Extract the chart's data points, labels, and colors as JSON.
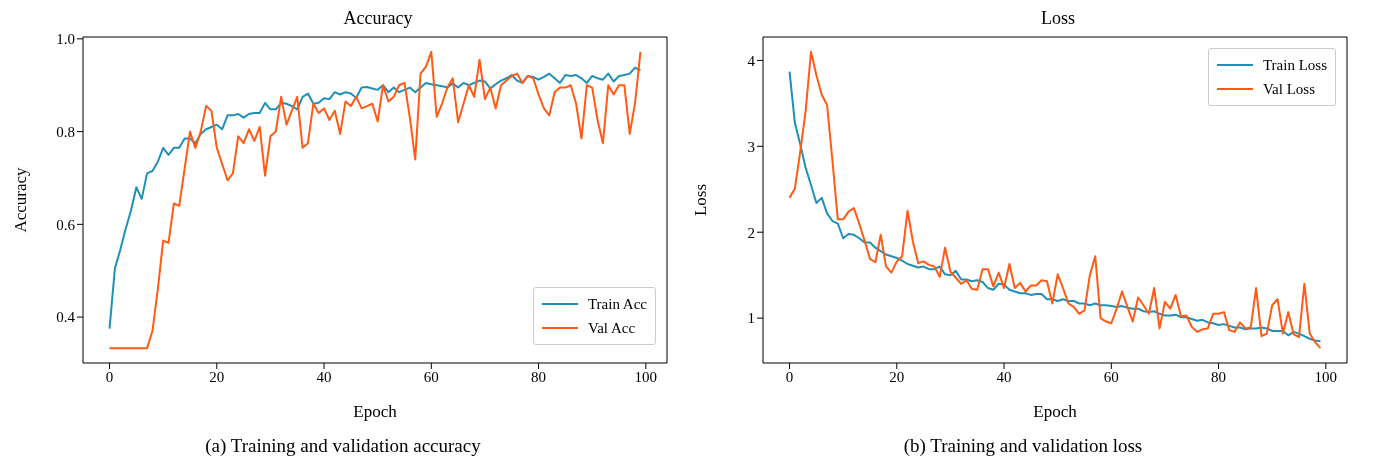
{
  "chart_data": [
    {
      "type": "line",
      "title": "Accuracy",
      "xlabel": "Epoch",
      "ylabel": "Accuracy",
      "annotations": [
        "(a) Training and validation accuracy"
      ],
      "legend": "bottom right",
      "x": [
        0,
        1,
        2,
        3,
        4,
        5,
        6,
        7,
        8,
        9,
        10,
        11,
        12,
        13,
        14,
        15,
        16,
        17,
        18,
        19,
        20,
        21,
        22,
        23,
        24,
        25,
        26,
        27,
        28,
        29,
        30,
        31,
        32,
        33,
        34,
        35,
        36,
        37,
        38,
        39,
        40,
        41,
        42,
        43,
        44,
        45,
        46,
        47,
        48,
        49,
        50,
        51,
        52,
        53,
        54,
        55,
        56,
        57,
        58,
        59,
        60,
        61,
        62,
        63,
        64,
        65,
        66,
        67,
        68,
        69,
        70,
        71,
        72,
        73,
        74,
        75,
        76,
        77,
        78,
        79,
        80,
        81,
        82,
        83,
        84,
        85,
        86,
        87,
        88,
        89,
        90,
        91,
        92,
        93,
        94,
        95,
        96,
        97,
        98,
        99
      ],
      "xlim": [
        -4.95,
        103.95
      ],
      "xticks": [
        0,
        20,
        40,
        60,
        80,
        100
      ],
      "ylim": [
        0.301,
        1.004
      ],
      "yticks": [
        {
          "value": 0.4,
          "label": "0.4"
        },
        {
          "value": 0.6,
          "label": "0.6"
        },
        {
          "value": 0.8,
          "label": "0.8"
        },
        {
          "value": 1.0,
          "label": "1.0"
        }
      ],
      "series": [
        {
          "name": "Train Acc",
          "color": "#2090b8",
          "values": [
            0.375,
            0.505,
            0.545,
            0.59,
            0.63,
            0.68,
            0.655,
            0.71,
            0.715,
            0.735,
            0.765,
            0.75,
            0.765,
            0.765,
            0.785,
            0.785,
            0.775,
            0.795,
            0.805,
            0.81,
            0.815,
            0.805,
            0.835,
            0.835,
            0.838,
            0.83,
            0.838,
            0.84,
            0.84,
            0.862,
            0.848,
            0.848,
            0.862,
            0.86,
            0.855,
            0.848,
            0.875,
            0.882,
            0.86,
            0.862,
            0.872,
            0.87,
            0.885,
            0.88,
            0.885,
            0.882,
            0.873,
            0.895,
            0.896,
            0.893,
            0.89,
            0.9,
            0.885,
            0.895,
            0.885,
            0.89,
            0.895,
            0.885,
            0.895,
            0.905,
            0.902,
            0.9,
            0.898,
            0.895,
            0.904,
            0.895,
            0.905,
            0.9,
            0.905,
            0.91,
            0.908,
            0.893,
            0.902,
            0.91,
            0.915,
            0.922,
            0.91,
            0.905,
            0.92,
            0.918,
            0.912,
            0.918,
            0.925,
            0.915,
            0.905,
            0.922,
            0.92,
            0.922,
            0.915,
            0.905,
            0.92,
            0.915,
            0.912,
            0.925,
            0.908,
            0.92,
            0.922,
            0.925,
            0.938,
            0.932
          ]
        },
        {
          "name": "Val Acc",
          "color": "#ff5b14",
          "values": [
            0.333,
            0.333,
            0.333,
            0.333,
            0.333,
            0.333,
            0.333,
            0.333,
            0.37,
            0.46,
            0.565,
            0.56,
            0.645,
            0.64,
            0.72,
            0.8,
            0.765,
            0.8,
            0.855,
            0.845,
            0.765,
            0.73,
            0.695,
            0.71,
            0.79,
            0.775,
            0.805,
            0.78,
            0.81,
            0.705,
            0.79,
            0.8,
            0.875,
            0.815,
            0.845,
            0.875,
            0.765,
            0.775,
            0.86,
            0.84,
            0.85,
            0.825,
            0.845,
            0.795,
            0.865,
            0.855,
            0.875,
            0.85,
            0.855,
            0.86,
            0.822,
            0.9,
            0.865,
            0.875,
            0.9,
            0.905,
            0.83,
            0.74,
            0.925,
            0.94,
            0.972,
            0.832,
            0.86,
            0.895,
            0.915,
            0.82,
            0.86,
            0.9,
            0.875,
            0.955,
            0.87,
            0.895,
            0.85,
            0.9,
            0.91,
            0.92,
            0.925,
            0.905,
            0.92,
            0.915,
            0.88,
            0.85,
            0.835,
            0.885,
            0.895,
            0.895,
            0.9,
            0.86,
            0.785,
            0.9,
            0.895,
            0.825,
            0.775,
            0.9,
            0.88,
            0.9,
            0.9,
            0.795,
            0.862,
            0.972
          ]
        }
      ]
    },
    {
      "type": "line",
      "title": "Loss",
      "xlabel": "Epoch",
      "ylabel": "Loss",
      "annotations": [
        "(b) Training and validation loss"
      ],
      "legend": "top right",
      "x": [
        0,
        1,
        2,
        3,
        4,
        5,
        6,
        7,
        8,
        9,
        10,
        11,
        12,
        13,
        14,
        15,
        16,
        17,
        18,
        19,
        20,
        21,
        22,
        23,
        24,
        25,
        26,
        27,
        28,
        29,
        30,
        31,
        32,
        33,
        34,
        35,
        36,
        37,
        38,
        39,
        40,
        41,
        42,
        43,
        44,
        45,
        46,
        47,
        48,
        49,
        50,
        51,
        52,
        53,
        54,
        55,
        56,
        57,
        58,
        59,
        60,
        61,
        62,
        63,
        64,
        65,
        66,
        67,
        68,
        69,
        70,
        71,
        72,
        73,
        74,
        75,
        76,
        77,
        78,
        79,
        80,
        81,
        82,
        83,
        84,
        85,
        86,
        87,
        88,
        89,
        90,
        91,
        92,
        93,
        94,
        95,
        96,
        97,
        98,
        99
      ],
      "xlim": [
        -4.95,
        103.95
      ],
      "xticks": [
        0,
        20,
        40,
        60,
        80,
        100
      ],
      "ylim": [
        0.4775,
        4.2725
      ],
      "yticks": [
        1,
        2,
        3,
        4
      ],
      "series": [
        {
          "name": "Train Loss",
          "color": "#2090b8",
          "values": [
            3.87,
            3.27,
            3.02,
            2.75,
            2.55,
            2.34,
            2.4,
            2.22,
            2.13,
            2.1,
            1.93,
            1.98,
            1.97,
            1.93,
            1.88,
            1.88,
            1.82,
            1.78,
            1.74,
            1.72,
            1.7,
            1.67,
            1.63,
            1.61,
            1.59,
            1.6,
            1.57,
            1.57,
            1.6,
            1.51,
            1.5,
            1.55,
            1.45,
            1.45,
            1.43,
            1.44,
            1.42,
            1.35,
            1.33,
            1.4,
            1.39,
            1.33,
            1.31,
            1.29,
            1.29,
            1.27,
            1.28,
            1.28,
            1.22,
            1.22,
            1.2,
            1.22,
            1.2,
            1.2,
            1.17,
            1.17,
            1.15,
            1.17,
            1.15,
            1.15,
            1.14,
            1.13,
            1.14,
            1.12,
            1.11,
            1.11,
            1.08,
            1.07,
            1.08,
            1.05,
            1.03,
            1.03,
            1.04,
            1.01,
            1.01,
            0.99,
            0.97,
            0.98,
            0.95,
            0.94,
            0.92,
            0.93,
            0.91,
            0.89,
            0.89,
            0.87,
            0.88,
            0.88,
            0.89,
            0.88,
            0.85,
            0.85,
            0.85,
            0.8,
            0.84,
            0.82,
            0.79,
            0.76,
            0.74,
            0.73
          ]
        },
        {
          "name": "Val Loss",
          "color": "#ff5b14",
          "values": [
            2.4,
            2.51,
            2.94,
            3.41,
            4.1,
            3.83,
            3.6,
            3.48,
            2.83,
            2.15,
            2.15,
            2.24,
            2.28,
            2.1,
            1.9,
            1.69,
            1.65,
            1.97,
            1.6,
            1.53,
            1.66,
            1.72,
            2.25,
            1.89,
            1.64,
            1.66,
            1.62,
            1.6,
            1.48,
            1.82,
            1.54,
            1.47,
            1.4,
            1.44,
            1.34,
            1.33,
            1.57,
            1.57,
            1.37,
            1.53,
            1.35,
            1.63,
            1.35,
            1.41,
            1.31,
            1.38,
            1.38,
            1.44,
            1.43,
            1.17,
            1.51,
            1.35,
            1.17,
            1.13,
            1.05,
            1.09,
            1.5,
            1.72,
            1.0,
            0.96,
            0.94,
            1.11,
            1.31,
            1.13,
            0.96,
            1.24,
            1.15,
            1.05,
            1.35,
            0.88,
            1.19,
            1.11,
            1.27,
            1.02,
            1.03,
            0.9,
            0.84,
            0.87,
            0.88,
            1.05,
            1.05,
            1.07,
            0.86,
            0.84,
            0.95,
            0.88,
            0.89,
            1.35,
            0.79,
            0.82,
            1.15,
            1.22,
            0.82,
            1.07,
            0.81,
            0.78,
            1.4,
            0.82,
            0.72,
            0.65
          ]
        }
      ]
    }
  ]
}
